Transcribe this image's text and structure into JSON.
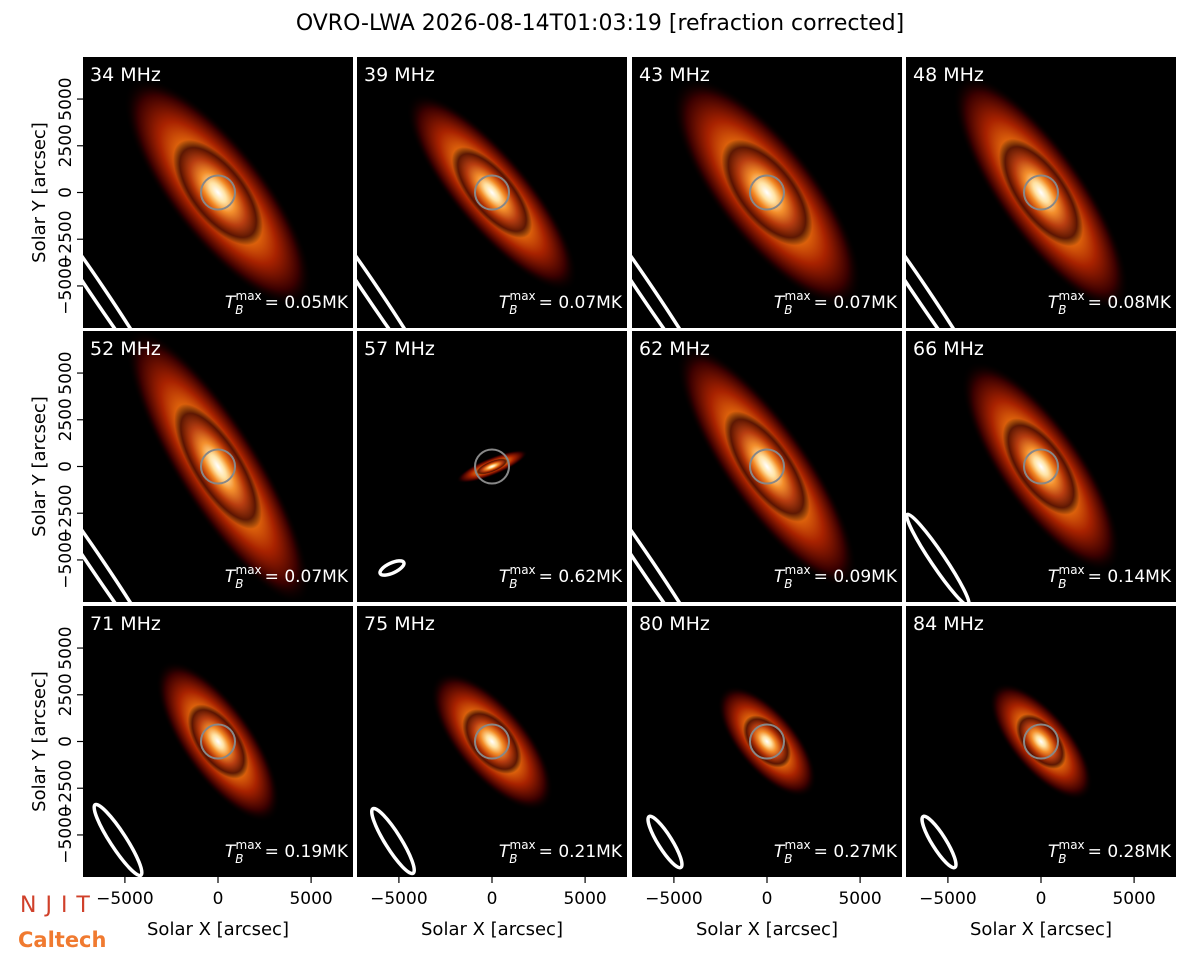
{
  "title": "OVRO-LWA 2026-08-14T01:03:19 [refraction corrected]",
  "tmax_symbol": {
    "base": "T",
    "sub": "B",
    "sup": "max"
  },
  "logos": [
    "NJIT",
    "Caltech"
  ],
  "chart_data": [
    {
      "type": "image",
      "title": "34 MHz",
      "tmax_label": "= 0.05MK",
      "xlim": [
        -7250,
        7250
      ],
      "ylim": [
        -7250,
        7250
      ],
      "ylabel": "Solar Y [arcsec]",
      "yticks": [
        {
          "value": -5000,
          "label": "−5000"
        },
        {
          "value": -2500,
          "label": "−2500"
        },
        0,
        2500,
        5000
      ]
    },
    {
      "type": "image",
      "title": "39 MHz",
      "tmax_label": "= 0.07MK",
      "xlim": [
        -7250,
        7250
      ],
      "ylim": [
        -7250,
        7250
      ]
    },
    {
      "type": "image",
      "title": "43 MHz",
      "tmax_label": "= 0.07MK",
      "xlim": [
        -7250,
        7250
      ],
      "ylim": [
        -7250,
        7250
      ]
    },
    {
      "type": "image",
      "title": "48 MHz",
      "tmax_label": "= 0.08MK",
      "xlim": [
        -7250,
        7250
      ],
      "ylim": [
        -7250,
        7250
      ]
    },
    {
      "type": "image",
      "title": "52 MHz",
      "tmax_label": "= 0.07MK",
      "xlim": [
        -7250,
        7250
      ],
      "ylim": [
        -7250,
        7250
      ],
      "ylabel": "Solar Y [arcsec]",
      "yticks": [
        {
          "value": -5000,
          "label": "−5000"
        },
        {
          "value": -2500,
          "label": "−2500"
        },
        0,
        2500,
        5000
      ]
    },
    {
      "type": "image",
      "title": "57 MHz",
      "tmax_label": "= 0.62MK",
      "xlim": [
        -7250,
        7250
      ],
      "ylim": [
        -7250,
        7250
      ]
    },
    {
      "type": "image",
      "title": "62 MHz",
      "tmax_label": "= 0.09MK",
      "xlim": [
        -7250,
        7250
      ],
      "ylim": [
        -7250,
        7250
      ]
    },
    {
      "type": "image",
      "title": "66 MHz",
      "tmax_label": "= 0.14MK",
      "xlim": [
        -7250,
        7250
      ],
      "ylim": [
        -7250,
        7250
      ]
    },
    {
      "type": "image",
      "title": "71 MHz",
      "tmax_label": "= 0.19MK",
      "xlim": [
        -7250,
        7250
      ],
      "ylim": [
        -7250,
        7250
      ],
      "ylabel": "Solar Y [arcsec]",
      "yticks": [
        {
          "value": -5000,
          "label": "−5000"
        },
        {
          "value": -2500,
          "label": "−2500"
        },
        0,
        2500,
        5000
      ],
      "xlabel": "Solar X [arcsec]",
      "xticks": [
        {
          "value": -5000,
          "label": "−5000"
        },
        0,
        5000
      ]
    },
    {
      "type": "image",
      "title": "75 MHz",
      "tmax_label": "= 0.21MK",
      "xlim": [
        -7250,
        7250
      ],
      "ylim": [
        -7250,
        7250
      ],
      "xlabel": "Solar X [arcsec]",
      "xticks": [
        {
          "value": -5000,
          "label": "−5000"
        },
        0,
        5000
      ]
    },
    {
      "type": "image",
      "title": "80 MHz",
      "tmax_label": "= 0.27MK",
      "xlim": [
        -7250,
        7250
      ],
      "ylim": [
        -7250,
        7250
      ],
      "xlabel": "Solar X [arcsec]",
      "xticks": [
        {
          "value": -5000,
          "label": "−5000"
        },
        0,
        5000
      ]
    },
    {
      "type": "image",
      "title": "84 MHz",
      "tmax_label": "= 0.28MK",
      "xlim": [
        -7250,
        7250
      ],
      "ylim": [
        -7250,
        7250
      ],
      "xlabel": "Solar X [arcsec]",
      "xticks": [
        {
          "value": -5000,
          "label": "−5000"
        },
        0,
        5000
      ]
    }
  ]
}
